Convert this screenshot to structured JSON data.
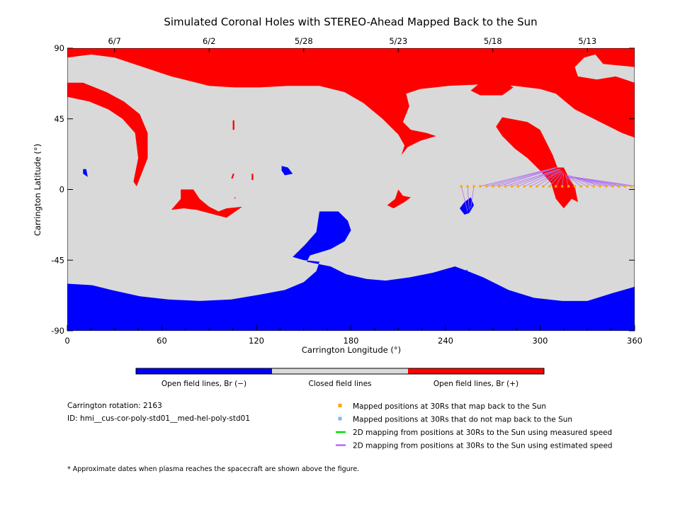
{
  "chart_data": {
    "type": "heatmap",
    "title": "Simulated Coronal Holes with STEREO-Ahead Mapped Back to the Sun",
    "xlabel": "Carrington Longitude (°)",
    "ylabel": "Carrington Latitude (°)",
    "xlim": [
      0,
      360
    ],
    "ylim": [
      -90,
      90
    ],
    "x_ticks": [
      0,
      60,
      120,
      180,
      240,
      300,
      360
    ],
    "y_ticks": [
      90,
      45,
      0,
      -45,
      -90
    ],
    "top_axis": {
      "labels": [
        "6/7",
        "6/2",
        "5/28",
        "5/23",
        "5/18",
        "5/13"
      ],
      "longitudes": [
        30,
        90,
        150,
        210,
        270,
        330
      ]
    },
    "colorbar": {
      "segments": [
        {
          "label": "Open field lines, Br (−)",
          "color": "#0000ff"
        },
        {
          "label": "Closed field lines",
          "color": "#d9d9d9"
        },
        {
          "label": "Open field lines, Br (+)",
          "color": "#ff0000"
        }
      ]
    },
    "regions": {
      "positive_open": [
        [
          [
            0,
            90
          ],
          [
            360,
            90
          ],
          [
            360,
            78
          ],
          [
            340,
            80
          ],
          [
            335,
            86
          ],
          [
            328,
            84
          ],
          [
            322,
            78
          ],
          [
            324,
            72
          ],
          [
            336,
            70
          ],
          [
            348,
            72
          ],
          [
            360,
            68
          ],
          [
            360,
            33
          ],
          [
            352,
            36
          ],
          [
            342,
            41
          ],
          [
            332,
            46
          ],
          [
            322,
            51
          ],
          [
            316,
            56
          ],
          [
            310,
            61
          ],
          [
            300,
            64
          ],
          [
            284,
            66
          ],
          [
            264,
            67
          ],
          [
            242,
            66
          ],
          [
            224,
            64
          ],
          [
            215,
            61
          ],
          [
            217,
            53
          ],
          [
            213,
            43
          ],
          [
            218,
            38
          ],
          [
            228,
            36
          ],
          [
            234,
            34
          ],
          [
            224,
            31
          ],
          [
            216,
            27
          ],
          [
            212,
            22
          ],
          [
            214,
            28
          ],
          [
            210,
            35
          ],
          [
            200,
            45
          ],
          [
            188,
            55
          ],
          [
            176,
            62
          ],
          [
            160,
            66
          ],
          [
            140,
            66
          ],
          [
            122,
            65
          ],
          [
            106,
            65
          ],
          [
            90,
            66
          ],
          [
            66,
            72
          ],
          [
            45,
            79
          ],
          [
            30,
            84
          ],
          [
            15,
            86
          ],
          [
            0,
            84
          ]
        ],
        [
          [
            0,
            68
          ],
          [
            10,
            68
          ],
          [
            25,
            62
          ],
          [
            36,
            56
          ],
          [
            46,
            48
          ],
          [
            51,
            36
          ],
          [
            51,
            20
          ],
          [
            44,
            2
          ],
          [
            42,
            5
          ],
          [
            45,
            20
          ],
          [
            43,
            36
          ],
          [
            35,
            45
          ],
          [
            26,
            51
          ],
          [
            14,
            56
          ],
          [
            0,
            59
          ]
        ],
        [
          [
            262,
            60
          ],
          [
            276,
            60
          ],
          [
            283,
            65
          ],
          [
            276,
            69
          ],
          [
            262,
            68
          ],
          [
            256,
            63
          ]
        ],
        [
          [
            276,
            46
          ],
          [
            292,
            43
          ],
          [
            300,
            38
          ],
          [
            304,
            30
          ],
          [
            308,
            22
          ],
          [
            311,
            14
          ],
          [
            315,
            14
          ],
          [
            318,
            8
          ],
          [
            322,
            2
          ],
          [
            324,
            -8
          ],
          [
            320,
            -6
          ],
          [
            315,
            -12
          ],
          [
            310,
            -6
          ],
          [
            307,
            4
          ],
          [
            300,
            12
          ],
          [
            292,
            20
          ],
          [
            284,
            26
          ],
          [
            276,
            34
          ],
          [
            272,
            40
          ]
        ],
        [
          [
            72,
            0
          ],
          [
            80,
            0
          ],
          [
            84,
            -6
          ],
          [
            90,
            -11
          ],
          [
            96,
            -14
          ],
          [
            101,
            -12
          ],
          [
            111,
            -11
          ],
          [
            101,
            -18
          ],
          [
            82,
            -13
          ],
          [
            74,
            -12
          ],
          [
            66,
            -13
          ],
          [
            72,
            -6
          ]
        ],
        [
          [
            210,
            0
          ],
          [
            213,
            -4
          ],
          [
            218,
            -5
          ],
          [
            214,
            -8
          ],
          [
            207,
            -12
          ],
          [
            203,
            -10
          ],
          [
            208,
            -6
          ]
        ],
        [
          [
            105,
            10
          ],
          [
            106,
            10
          ],
          [
            105,
            7
          ],
          [
            104,
            7
          ]
        ],
        [
          [
            106,
            -5
          ],
          [
            107,
            -5
          ],
          [
            106,
            -6
          ]
        ],
        [
          [
            105,
            44
          ],
          [
            106,
            44
          ],
          [
            106,
            38
          ],
          [
            105,
            38
          ]
        ],
        [
          [
            117,
            10
          ],
          [
            118,
            10
          ],
          [
            118,
            6
          ],
          [
            117,
            6
          ]
        ]
      ],
      "negative_open": [
        [
          [
            0,
            -60
          ],
          [
            16,
            -61
          ],
          [
            28,
            -64
          ],
          [
            46,
            -68
          ],
          [
            64,
            -70
          ],
          [
            84,
            -71
          ],
          [
            104,
            -70
          ],
          [
            122,
            -67
          ],
          [
            138,
            -64
          ],
          [
            150,
            -59
          ],
          [
            158,
            -52
          ],
          [
            160,
            -46
          ],
          [
            150,
            -45
          ],
          [
            143,
            -43
          ],
          [
            151,
            -35
          ],
          [
            158,
            -27
          ],
          [
            160,
            -14
          ],
          [
            172,
            -14
          ],
          [
            178,
            -20
          ],
          [
            180,
            -26
          ],
          [
            176,
            -33
          ],
          [
            167,
            -38
          ],
          [
            154,
            -42
          ],
          [
            152,
            -46
          ],
          [
            167,
            -49
          ],
          [
            177,
            -54
          ],
          [
            190,
            -57
          ],
          [
            202,
            -58
          ],
          [
            217,
            -56
          ],
          [
            232,
            -53
          ],
          [
            246,
            -49
          ],
          [
            254,
            -52
          ],
          [
            264,
            -56
          ],
          [
            280,
            -64
          ],
          [
            296,
            -69
          ],
          [
            314,
            -71
          ],
          [
            330,
            -71
          ],
          [
            346,
            -66
          ],
          [
            360,
            -62
          ],
          [
            360,
            -90
          ],
          [
            0,
            -90
          ]
        ],
        [
          [
            10,
            13
          ],
          [
            12,
            13
          ],
          [
            13,
            8
          ],
          [
            10,
            10
          ]
        ],
        [
          [
            136,
            15
          ],
          [
            140,
            14
          ],
          [
            143,
            10
          ],
          [
            138,
            9
          ],
          [
            136,
            12
          ]
        ],
        [
          [
            252,
            -8
          ],
          [
            256,
            -5
          ],
          [
            258,
            -10
          ],
          [
            255,
            -15
          ],
          [
            252,
            -16
          ],
          [
            249,
            -12
          ]
        ],
        [
          [
            252,
            -52
          ],
          [
            254,
            -51
          ],
          [
            253,
            -54
          ]
        ]
      ]
    },
    "series": [
      {
        "name": "Mapped positions at 30Rs that map back to the Sun",
        "marker": "square",
        "color": "#ffa500",
        "x": [
          250,
          254,
          258,
          262,
          266,
          270,
          274,
          278,
          282,
          286,
          290,
          294,
          298,
          302,
          306,
          310,
          314,
          318,
          322,
          326,
          330,
          334,
          338,
          342,
          346,
          350,
          354,
          358,
          362
        ],
        "y": [
          2,
          2,
          2,
          2,
          2,
          2,
          2,
          2,
          2,
          2,
          2,
          2,
          2,
          2,
          2,
          2,
          2,
          2,
          2,
          2,
          2,
          2,
          2,
          2,
          2,
          2,
          2,
          2,
          2
        ]
      },
      {
        "name": "Mapped positions at 30Rs that do not map back to the Sun",
        "marker": "square",
        "color": "#7fb8f5",
        "x": [],
        "y": []
      },
      {
        "name": "2D mapping from positions at 30Rs to the Sun using measured speed",
        "line": true,
        "color": "#00e000",
        "x": [],
        "y": []
      },
      {
        "name": "2D mapping from positions at 30Rs to the Sun using estimated speed",
        "line": true,
        "color": "#b070f0",
        "segments": [
          [
            [
              250,
              2
            ],
            [
              254,
              -14
            ]
          ],
          [
            [
              254,
              2
            ],
            [
              255,
              -13
            ]
          ],
          [
            [
              258,
              2
            ],
            [
              256,
              -12
            ]
          ],
          [
            [
              262,
              2
            ],
            [
              310,
              14
            ]
          ],
          [
            [
              266,
              2
            ],
            [
              310,
              14
            ]
          ],
          [
            [
              270,
              2
            ],
            [
              311,
              14
            ]
          ],
          [
            [
              274,
              2
            ],
            [
              311,
              14
            ]
          ],
          [
            [
              278,
              2
            ],
            [
              312,
              13
            ]
          ],
          [
            [
              282,
              2
            ],
            [
              312,
              13
            ]
          ],
          [
            [
              286,
              2
            ],
            [
              312,
              13
            ]
          ],
          [
            [
              290,
              2
            ],
            [
              313,
              13
            ]
          ],
          [
            [
              294,
              2
            ],
            [
              313,
              12
            ]
          ],
          [
            [
              298,
              2
            ],
            [
              313,
              12
            ]
          ],
          [
            [
              302,
              2
            ],
            [
              314,
              12
            ]
          ],
          [
            [
              306,
              2
            ],
            [
              314,
              11
            ]
          ],
          [
            [
              310,
              2
            ],
            [
              315,
              11
            ]
          ],
          [
            [
              314,
              2
            ],
            [
              315,
              10
            ]
          ],
          [
            [
              318,
              2
            ],
            [
              316,
              10
            ]
          ],
          [
            [
              322,
              2
            ],
            [
              316,
              9
            ]
          ],
          [
            [
              326,
              2
            ],
            [
              317,
              9
            ]
          ],
          [
            [
              330,
              2
            ],
            [
              317,
              9
            ]
          ],
          [
            [
              334,
              2
            ],
            [
              318,
              9
            ]
          ],
          [
            [
              338,
              2
            ],
            [
              318,
              9
            ]
          ],
          [
            [
              342,
              2
            ],
            [
              319,
              8
            ]
          ],
          [
            [
              346,
              2
            ],
            [
              319,
              8
            ]
          ],
          [
            [
              350,
              2
            ],
            [
              320,
              8
            ]
          ],
          [
            [
              354,
              2
            ],
            [
              320,
              8
            ]
          ],
          [
            [
              358,
              2
            ],
            [
              321,
              8
            ]
          ],
          [
            [
              362,
              2
            ],
            [
              321,
              8
            ]
          ]
        ]
      }
    ]
  },
  "info": {
    "rotation": "Carrington rotation: 2163",
    "id": "ID: hmi__cus-cor-poly-std01__med-hel-poly-std01"
  },
  "footnote": "* Approximate dates when plasma reaches the spacecraft are shown above the figure."
}
